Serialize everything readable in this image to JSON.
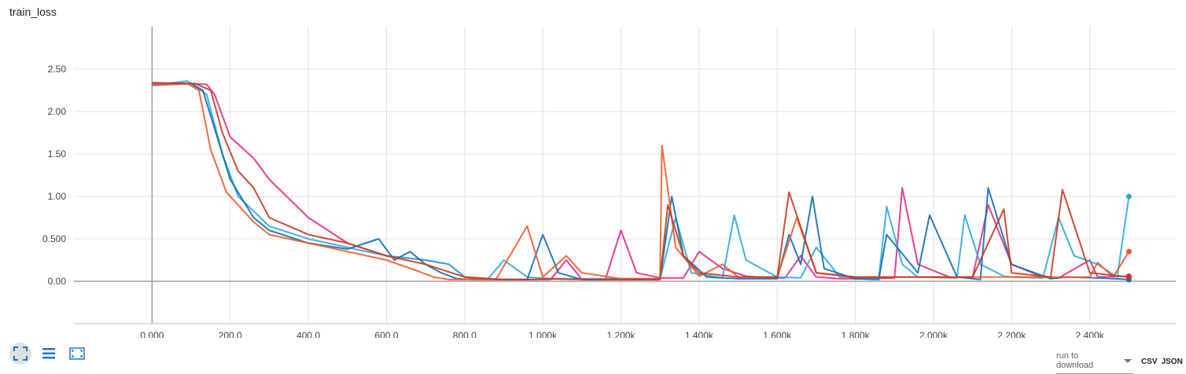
{
  "card": {
    "title": "train_loss",
    "download_label": "run to download",
    "csv_label": "CSV",
    "json_label": "JSON"
  },
  "icons": {
    "fit": "fit-domain-icon",
    "legend": "list-icon",
    "expand": "expand-icon"
  },
  "chart_data": {
    "type": "line",
    "xlim": [
      -200,
      2620
    ],
    "ylim": [
      -0.5,
      3.0
    ],
    "x_ticks": [
      0,
      200,
      400,
      600,
      800,
      1000,
      1200,
      1400,
      1600,
      1800,
      2000,
      2200,
      2400
    ],
    "x_tick_labels": [
      "0.000",
      "200.0",
      "400.0",
      "600.0",
      "800.0",
      "1.000k",
      "1.200k",
      "1.400k",
      "1.600k",
      "1.800k",
      "2.000k",
      "2.200k",
      "2.400k"
    ],
    "y_ticks": [
      0,
      0.5,
      1.0,
      1.5,
      2.0,
      2.5
    ],
    "y_tick_labels": [
      "0.00",
      "0.500",
      "1.00",
      "1.50",
      "2.00",
      "2.50"
    ],
    "grid": true,
    "series": [
      {
        "color": "#e7298a",
        "x": [
          0,
          100,
          140,
          160,
          200,
          260,
          300,
          400,
          500,
          600,
          700,
          760,
          800,
          840,
          880,
          960,
          1020,
          1060,
          1100,
          1160,
          1200,
          1240,
          1300,
          1360,
          1400,
          1460,
          1520,
          1580,
          1620,
          1660,
          1700,
          1760,
          1840,
          1900,
          1920,
          1960,
          2040,
          2100,
          2140,
          2200,
          2280,
          2320,
          2400,
          2420,
          2500
        ],
        "y": [
          2.33,
          2.33,
          2.32,
          2.2,
          1.7,
          1.45,
          1.2,
          0.75,
          0.45,
          0.3,
          0.25,
          0.2,
          0.05,
          0.03,
          0.02,
          0.02,
          0.02,
          0.25,
          0.02,
          0.02,
          0.6,
          0.1,
          0.04,
          0.04,
          0.35,
          0.15,
          0.06,
          0.04,
          0.04,
          0.3,
          0.05,
          0.03,
          0.03,
          0.04,
          1.1,
          0.2,
          0.05,
          0.05,
          0.9,
          0.2,
          0.05,
          0.04,
          0.25,
          0.05,
          0.06
        ]
      },
      {
        "color": "#29aae1",
        "x": [
          0,
          90,
          140,
          180,
          220,
          300,
          400,
          500,
          600,
          700,
          760,
          800,
          860,
          900,
          960,
          1020,
          1100,
          1200,
          1300,
          1340,
          1380,
          1460,
          1490,
          1520,
          1600,
          1660,
          1700,
          1760,
          1860,
          1880,
          1920,
          1960,
          2060,
          2080,
          2120,
          2180,
          2200,
          2280,
          2320,
          2360,
          2420,
          2470,
          2500
        ],
        "y": [
          2.31,
          2.36,
          2.2,
          1.5,
          1.0,
          0.65,
          0.5,
          0.4,
          0.3,
          0.25,
          0.2,
          0.05,
          0.03,
          0.25,
          0.05,
          0.03,
          0.03,
          0.03,
          0.03,
          0.75,
          0.1,
          0.04,
          0.78,
          0.25,
          0.05,
          0.04,
          0.4,
          0.05,
          0.04,
          0.88,
          0.2,
          0.05,
          0.04,
          0.78,
          0.2,
          0.06,
          0.05,
          0.04,
          0.75,
          0.3,
          0.2,
          0.05,
          1.0
        ]
      },
      {
        "color": "#0f6fb4",
        "x": [
          0,
          100,
          130,
          160,
          200,
          260,
          300,
          400,
          500,
          580,
          620,
          660,
          700,
          740,
          780,
          820,
          900,
          960,
          1000,
          1040,
          1100,
          1200,
          1300,
          1330,
          1360,
          1420,
          1500,
          1600,
          1630,
          1660,
          1690,
          1720,
          1800,
          1860,
          1880,
          1960,
          1990,
          2060,
          2120,
          2140,
          2200,
          2300,
          2340,
          2420,
          2500
        ],
        "y": [
          2.31,
          2.33,
          2.25,
          1.8,
          1.2,
          0.75,
          0.6,
          0.45,
          0.38,
          0.5,
          0.25,
          0.35,
          0.2,
          0.1,
          0.03,
          0.02,
          0.02,
          0.02,
          0.55,
          0.1,
          0.02,
          0.02,
          0.02,
          1.0,
          0.3,
          0.05,
          0.03,
          0.03,
          0.55,
          0.2,
          1.0,
          0.15,
          0.03,
          0.02,
          0.55,
          0.1,
          0.78,
          0.05,
          0.02,
          1.1,
          0.2,
          0.03,
          0.05,
          0.04,
          0.02
        ]
      },
      {
        "color": "#f05a28",
        "x": [
          0,
          90,
          120,
          150,
          190,
          260,
          300,
          400,
          500,
          600,
          680,
          720,
          760,
          800,
          880,
          960,
          1000,
          1060,
          1100,
          1200,
          1300,
          1305,
          1340,
          1400,
          1460,
          1500,
          1600,
          1650,
          1700,
          1800,
          1900,
          2000,
          2100,
          2200,
          2300,
          2400,
          2420,
          2460,
          2500
        ],
        "y": [
          2.31,
          2.33,
          2.25,
          1.55,
          1.05,
          0.7,
          0.55,
          0.45,
          0.35,
          0.25,
          0.12,
          0.05,
          0.02,
          0.02,
          0.02,
          0.65,
          0.05,
          0.3,
          0.1,
          0.03,
          0.03,
          1.6,
          0.4,
          0.06,
          0.2,
          0.05,
          0.05,
          0.75,
          0.1,
          0.05,
          0.05,
          0.05,
          0.05,
          0.05,
          0.05,
          0.05,
          0.22,
          0.05,
          0.35
        ]
      },
      {
        "color": "#c8381f",
        "x": [
          0,
          110,
          150,
          180,
          220,
          260,
          300,
          400,
          500,
          600,
          700,
          800,
          900,
          980,
          1000,
          1100,
          1200,
          1300,
          1320,
          1360,
          1400,
          1500,
          1600,
          1630,
          1700,
          1800,
          1900,
          2000,
          2100,
          2180,
          2200,
          2300,
          2330,
          2400,
          2500
        ],
        "y": [
          2.34,
          2.33,
          2.25,
          1.75,
          1.3,
          1.1,
          0.75,
          0.55,
          0.45,
          0.3,
          0.2,
          0.05,
          0.02,
          0.02,
          0.03,
          0.02,
          0.02,
          0.02,
          0.9,
          0.3,
          0.1,
          0.05,
          0.05,
          1.05,
          0.1,
          0.05,
          0.05,
          0.05,
          0.05,
          0.85,
          0.1,
          0.05,
          1.08,
          0.1,
          0.05
        ]
      }
    ]
  }
}
